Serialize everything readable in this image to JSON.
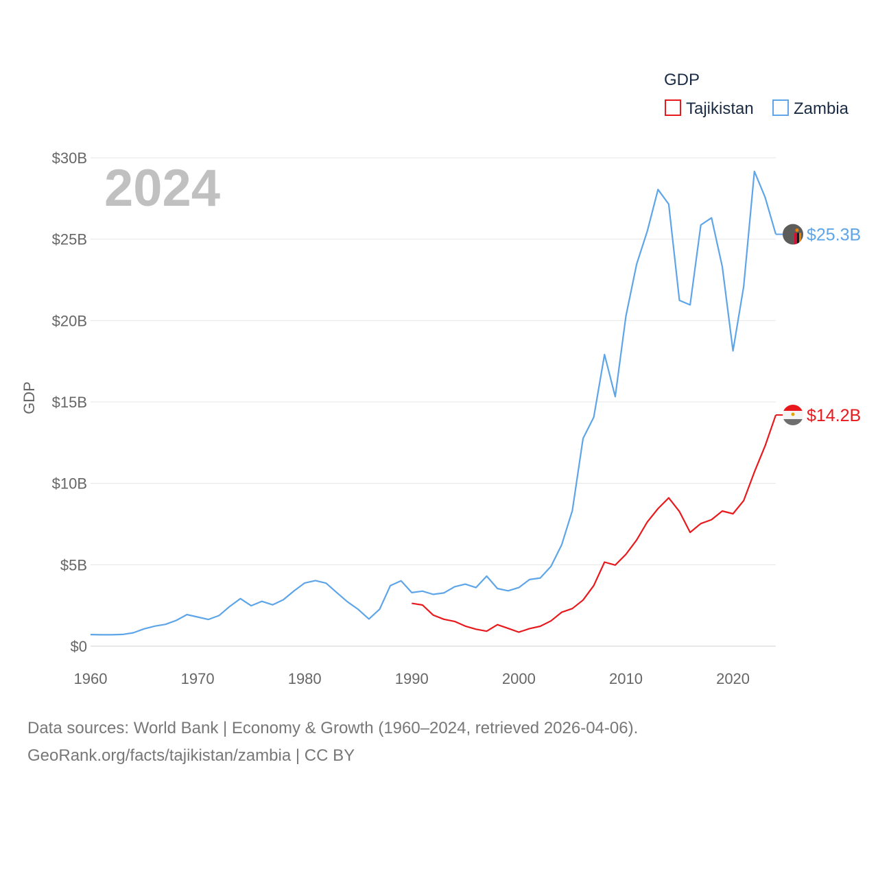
{
  "chart_data": {
    "type": "line",
    "year_label": "2024",
    "ylabel": "GDP",
    "legend_title": "GDP",
    "xlim": [
      1960,
      2024
    ],
    "ylim": [
      0,
      30
    ],
    "x_ticks": [
      {
        "value": 1960,
        "label": "1960"
      },
      {
        "value": 1970,
        "label": "1970"
      },
      {
        "value": 1980,
        "label": "1980"
      },
      {
        "value": 1990,
        "label": "1990"
      },
      {
        "value": 2000,
        "label": "2000"
      },
      {
        "value": 2010,
        "label": "2010"
      },
      {
        "value": 2020,
        "label": "2020"
      }
    ],
    "y_ticks": [
      {
        "value": 0,
        "label": "$0"
      },
      {
        "value": 5,
        "label": "$5B"
      },
      {
        "value": 10,
        "label": "$10B"
      },
      {
        "value": 15,
        "label": "$15B"
      },
      {
        "value": 20,
        "label": "$20B"
      },
      {
        "value": 25,
        "label": "$25B"
      },
      {
        "value": 30,
        "label": "$30B"
      }
    ],
    "series": [
      {
        "name": "Tajikistan",
        "color": "#e8191c",
        "end_label": "$14.2B",
        "x": [
          1990,
          1991,
          1992,
          1993,
          1994,
          1995,
          1996,
          1997,
          1998,
          1999,
          2000,
          2001,
          2002,
          2003,
          2004,
          2005,
          2006,
          2007,
          2008,
          2009,
          2010,
          2011,
          2012,
          2013,
          2014,
          2015,
          2016,
          2017,
          2018,
          2019,
          2020,
          2021,
          2022,
          2023,
          2024
        ],
        "values": [
          2.63,
          2.53,
          1.91,
          1.65,
          1.52,
          1.23,
          1.04,
          0.92,
          1.32,
          1.09,
          0.86,
          1.08,
          1.22,
          1.55,
          2.08,
          2.31,
          2.83,
          3.72,
          5.16,
          4.98,
          5.64,
          6.52,
          7.63,
          8.45,
          9.11,
          8.27,
          6.99,
          7.53,
          7.77,
          8.3,
          8.13,
          8.94,
          10.7,
          12.3,
          14.2
        ]
      },
      {
        "name": "Zambia",
        "color": "#5da5e8",
        "end_label": "$25.3B",
        "x": [
          1960,
          1961,
          1962,
          1963,
          1964,
          1965,
          1966,
          1967,
          1968,
          1969,
          1970,
          1971,
          1972,
          1973,
          1974,
          1975,
          1976,
          1977,
          1978,
          1979,
          1980,
          1981,
          1982,
          1983,
          1984,
          1985,
          1986,
          1987,
          1988,
          1989,
          1990,
          1991,
          1992,
          1993,
          1994,
          1995,
          1996,
          1997,
          1998,
          1999,
          2000,
          2001,
          2002,
          2003,
          2004,
          2005,
          2006,
          2007,
          2008,
          2009,
          2010,
          2011,
          2012,
          2013,
          2014,
          2015,
          2016,
          2017,
          2018,
          2019,
          2020,
          2021,
          2022,
          2023,
          2024
        ],
        "values": [
          0.71,
          0.7,
          0.7,
          0.72,
          0.82,
          1.06,
          1.23,
          1.34,
          1.58,
          1.94,
          1.79,
          1.64,
          1.88,
          2.44,
          2.92,
          2.48,
          2.75,
          2.54,
          2.85,
          3.39,
          3.88,
          4.03,
          3.87,
          3.29,
          2.72,
          2.26,
          1.67,
          2.27,
          3.72,
          4.01,
          3.29,
          3.38,
          3.18,
          3.27,
          3.65,
          3.81,
          3.6,
          4.3,
          3.54,
          3.4,
          3.6,
          4.09,
          4.19,
          4.9,
          6.22,
          8.33,
          12.76,
          14.06,
          17.91,
          15.33,
          20.27,
          23.46,
          25.5,
          28.05,
          27.15,
          21.24,
          20.96,
          25.87,
          26.31,
          23.31,
          18.14,
          22.1,
          29.16,
          27.58,
          25.3
        ]
      }
    ]
  },
  "source": {
    "line1": "Data sources: World Bank | Economy & Growth (1960–2024, retrieved 2026-04-06).",
    "line2": "GeoRank.org/facts/tajikistan/zambia | CC BY"
  }
}
